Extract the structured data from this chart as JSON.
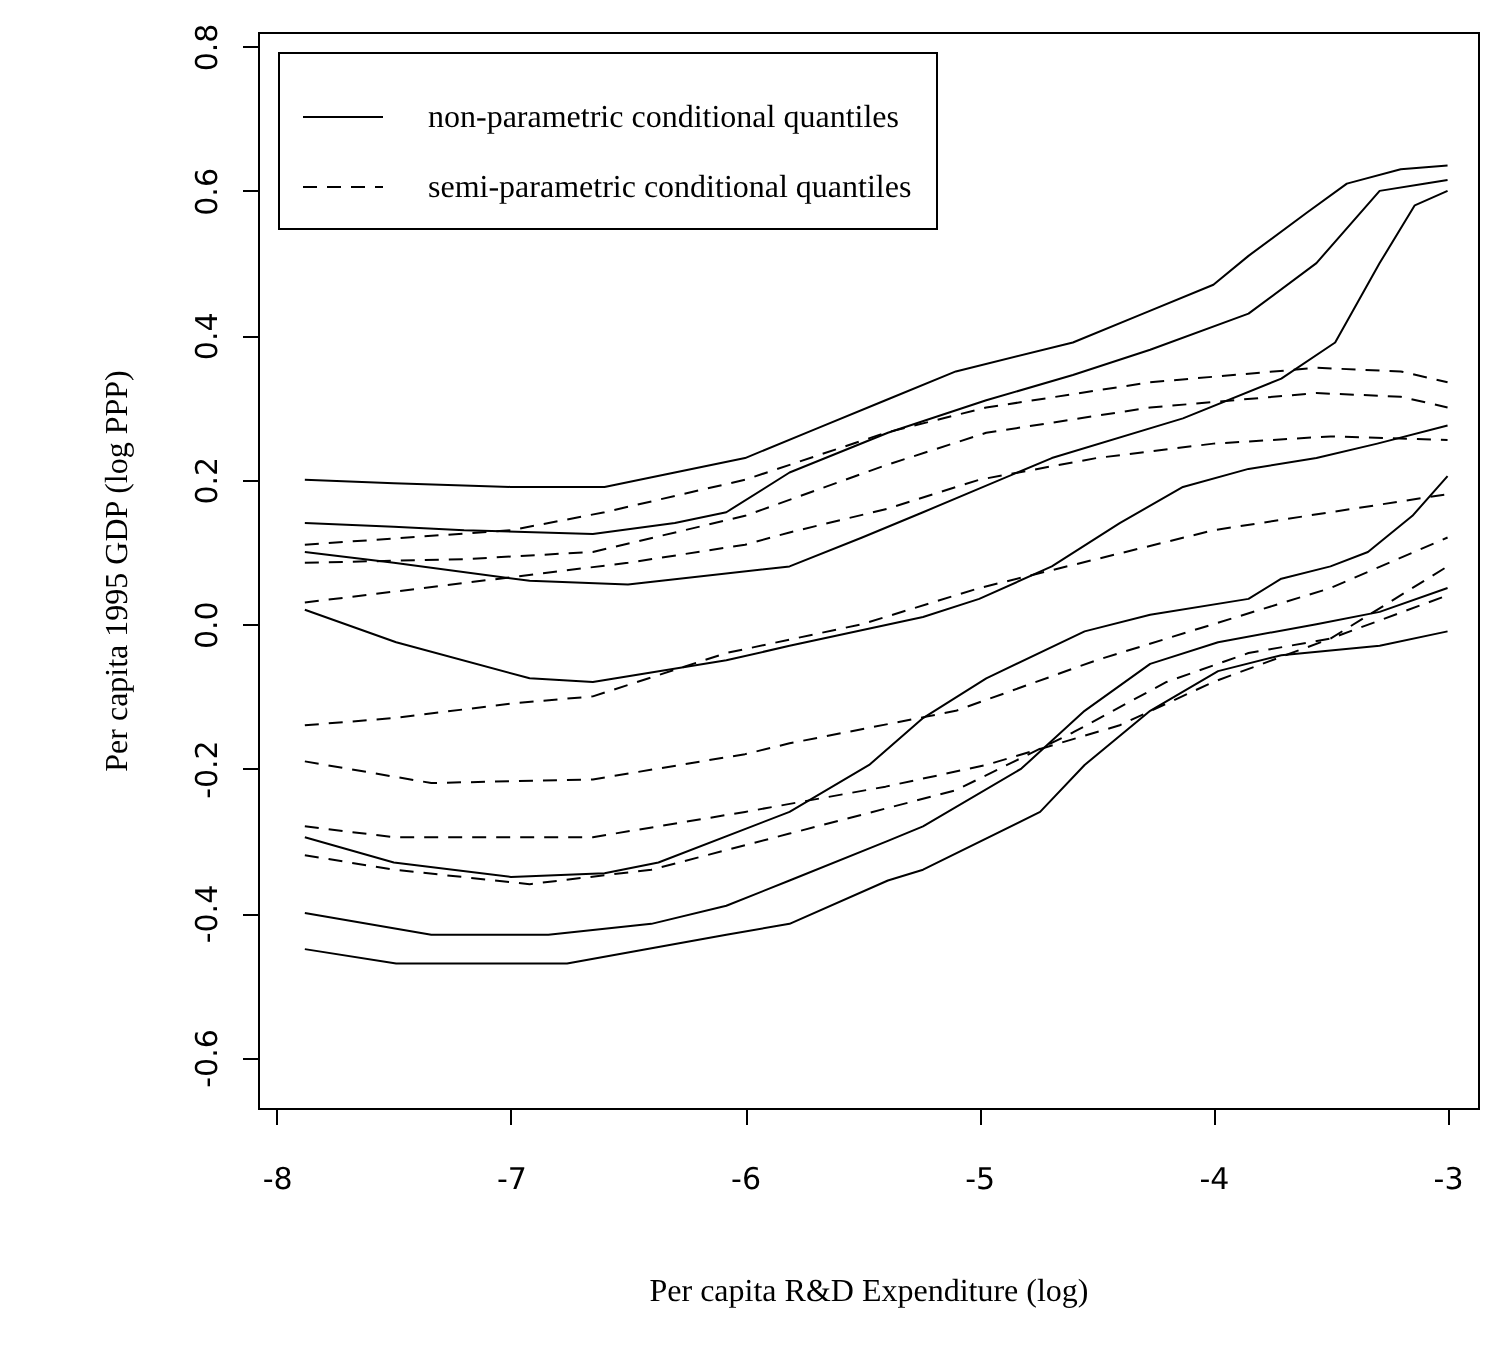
{
  "chart_data": {
    "type": "line",
    "xlabel": "Per capita R&D Expenditure (log)",
    "ylabel": "Per capita 1995 GDP (log PPP)",
    "xlim": [
      -8.08,
      -2.87
    ],
    "ylim": [
      -0.67,
      0.82
    ],
    "xticks": [
      -8,
      -7,
      -6,
      -5,
      -4,
      -3
    ],
    "yticks": [
      -0.6,
      -0.4,
      -0.2,
      {
        "value": 0,
        "label": "0.0"
      },
      0.2,
      0.4,
      0.6,
      0.8
    ],
    "legend": "top left",
    "series": [
      {
        "name": "non-parametric conditional quantiles",
        "color": "#000000",
        "line_style": "solid",
        "x": [
          -7.88,
          -7.5,
          -7,
          -6.6,
          -6.3,
          -6,
          -5.7,
          -5.4,
          -5.1,
          -4.6,
          -4.3,
          -4,
          -3.85,
          -3.6,
          -3.43,
          -3.2,
          -3
        ],
        "values": [
          0.2,
          0.195,
          0.19,
          0.19,
          0.21,
          0.23,
          0.27,
          0.31,
          0.35,
          0.39,
          0.43,
          0.47,
          0.51,
          0.57,
          0.61,
          0.63,
          0.635
        ]
      },
      {
        "color": "#000000",
        "line_style": "solid",
        "x": [
          -7.88,
          -7.5,
          -7.2,
          -6.65,
          -6.3,
          -6.08,
          -5.81,
          -5.39,
          -4.97,
          -4.6,
          -4.27,
          -3.85,
          -3.56,
          -3.29,
          -3.1,
          -3
        ],
        "values": [
          0.14,
          0.135,
          0.13,
          0.125,
          0.14,
          0.155,
          0.21,
          0.265,
          0.31,
          0.345,
          0.38,
          0.43,
          0.5,
          0.6,
          0.61,
          0.615
        ]
      },
      {
        "color": "#000000",
        "line_style": "solid",
        "x": [
          -7.88,
          -7.5,
          -6.92,
          -6.5,
          -5.81,
          -5.5,
          -5.24,
          -4.69,
          -4.13,
          -3.71,
          -3.48,
          -3.29,
          -3.14,
          -3
        ],
        "values": [
          0.1,
          0.085,
          0.06,
          0.055,
          0.08,
          0.12,
          0.155,
          0.23,
          0.285,
          0.34,
          0.39,
          0.5,
          0.58,
          0.6
        ]
      },
      {
        "color": "#000000",
        "line_style": "solid",
        "x": [
          -7.88,
          -7.49,
          -6.92,
          -6.65,
          -6.08,
          -5.81,
          -5.24,
          -5,
          -4.69,
          -4.4,
          -4.13,
          -3.85,
          -3.56,
          -3.3,
          -3
        ],
        "values": [
          0.02,
          -0.025,
          -0.075,
          -0.08,
          -0.05,
          -0.03,
          0.01,
          0.035,
          0.08,
          0.14,
          0.19,
          0.215,
          0.23,
          0.25,
          0.275
        ]
      },
      {
        "color": "#000000",
        "line_style": "solid",
        "x": [
          -7.88,
          -7.5,
          -7,
          -6.6,
          -6.37,
          -5.81,
          -5.47,
          -5.24,
          -4.97,
          -4.55,
          -4.27,
          -3.85,
          -3.71,
          -3.5,
          -3.34,
          -3.15,
          -3
        ],
        "values": [
          -0.295,
          -0.33,
          -0.35,
          -0.345,
          -0.33,
          -0.26,
          -0.195,
          -0.13,
          -0.075,
          -0.01,
          0.013,
          0.035,
          0.063,
          0.08,
          0.1,
          0.15,
          0.205
        ]
      },
      {
        "color": "#000000",
        "line_style": "solid",
        "x": [
          -7.88,
          -7.34,
          -6.84,
          -6.4,
          -6.08,
          -5.81,
          -5.39,
          -5.24,
          -4.82,
          -4.55,
          -4.27,
          -3.98,
          -3.56,
          -3.29,
          -3
        ],
        "values": [
          -0.4,
          -0.43,
          -0.43,
          -0.415,
          -0.39,
          -0.355,
          -0.3,
          -0.28,
          -0.2,
          -0.12,
          -0.055,
          -0.025,
          0,
          0.017,
          0.05
        ]
      },
      {
        "color": "#000000",
        "line_style": "solid",
        "x": [
          -7.88,
          -7.49,
          -6.76,
          -6.08,
          -5.81,
          -5.39,
          -5.24,
          -4.74,
          -4.55,
          -4.27,
          -3.98,
          -3.71,
          -3.29,
          -3
        ],
        "values": [
          -0.45,
          -0.47,
          -0.47,
          -0.43,
          -0.415,
          -0.355,
          -0.34,
          -0.26,
          -0.195,
          -0.12,
          -0.065,
          -0.043,
          -0.03,
          -0.01
        ]
      },
      {
        "name": "semi-parametric conditional quantiles",
        "color": "#000000",
        "line_style": "dashed",
        "x": [
          -7.88,
          -7,
          -6.6,
          -6,
          -5.4,
          -4.97,
          -4.27,
          -3.56,
          -3.2,
          -3
        ],
        "values": [
          0.11,
          0.13,
          0.155,
          0.2,
          0.265,
          0.3,
          0.335,
          0.355,
          0.35,
          0.335
        ]
      },
      {
        "color": "#000000",
        "line_style": "dashed",
        "x": [
          -7.88,
          -7.2,
          -6.65,
          -6,
          -5.4,
          -4.97,
          -4.27,
          -3.56,
          -3.2,
          -3
        ],
        "values": [
          0.085,
          0.09,
          0.1,
          0.15,
          0.22,
          0.265,
          0.3,
          0.32,
          0.315,
          0.3
        ]
      },
      {
        "color": "#000000",
        "line_style": "dashed",
        "x": [
          -7.88,
          -7.5,
          -7,
          -6.5,
          -6,
          -5.81,
          -5.39,
          -5,
          -4.5,
          -4,
          -3.5,
          -3
        ],
        "values": [
          0.03,
          0.045,
          0.065,
          0.085,
          0.11,
          0.127,
          0.16,
          0.2,
          0.23,
          0.25,
          0.26,
          0.255
        ]
      },
      {
        "color": "#000000",
        "line_style": "dashed",
        "x": [
          -7.88,
          -7.5,
          -7,
          -6.65,
          -6.08,
          -5.5,
          -5,
          -4.5,
          -4,
          -3.5,
          -3
        ],
        "values": [
          -0.14,
          -0.13,
          -0.11,
          -0.1,
          -0.04,
          0,
          0.05,
          0.09,
          0.13,
          0.155,
          0.18
        ]
      },
      {
        "color": "#000000",
        "line_style": "dashed",
        "x": [
          -7.88,
          -7.34,
          -6.65,
          -6,
          -5.81,
          -5.1,
          -4.5,
          -4,
          -3.5,
          -3
        ],
        "values": [
          -0.19,
          -0.22,
          -0.215,
          -0.18,
          -0.165,
          -0.12,
          -0.05,
          0,
          0.05,
          0.12
        ]
      },
      {
        "color": "#000000",
        "line_style": "dashed",
        "x": [
          -7.88,
          -7.5,
          -6.65,
          -6,
          -5.4,
          -4.97,
          -4.4,
          -4,
          -3.5,
          -3
        ],
        "values": [
          -0.28,
          -0.295,
          -0.295,
          -0.26,
          -0.225,
          -0.195,
          -0.14,
          -0.08,
          -0.02,
          0.08
        ]
      },
      {
        "color": "#000000",
        "line_style": "dashed",
        "x": [
          -7.88,
          -7.5,
          -6.92,
          -6.4,
          -5.81,
          -5.1,
          -4.6,
          -4.2,
          -3.85,
          -3.5,
          -3
        ],
        "values": [
          -0.32,
          -0.34,
          -0.36,
          -0.34,
          -0.29,
          -0.23,
          -0.15,
          -0.08,
          -0.04,
          -0.02,
          0.04
        ]
      }
    ]
  }
}
